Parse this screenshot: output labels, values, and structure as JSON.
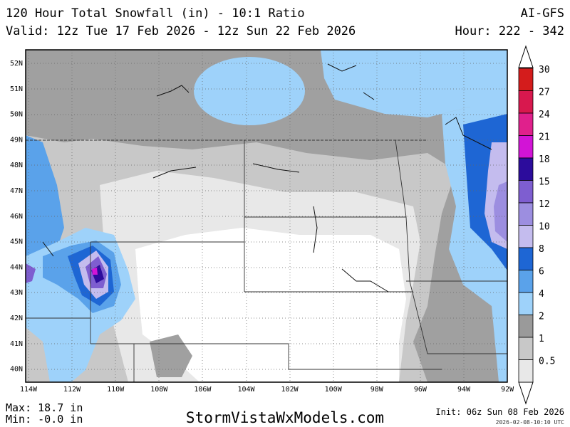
{
  "header": {
    "title": "120 Hour Total Snowfall (in) - 10:1 Ratio",
    "model": "AI-GFS",
    "valid": "Valid: 12z Tue 17 Feb 2026 - 12z Sun 22 Feb 2026",
    "hour": "Hour: 222 - 342"
  },
  "latitudes": [
    "52N",
    "51N",
    "50N",
    "49N",
    "48N",
    "47N",
    "46N",
    "45N",
    "44N",
    "43N",
    "42N",
    "41N",
    "40N"
  ],
  "longitudes": [
    "114W",
    "112W",
    "110W",
    "108W",
    "106W",
    "104W",
    "102W",
    "100W",
    "98W",
    "96W",
    "94W",
    "92W"
  ],
  "legend": {
    "levels": [
      "30",
      "27",
      "24",
      "21",
      "18",
      "15",
      "12",
      "10",
      "8",
      "6",
      "4",
      "2",
      "1",
      "0.5"
    ],
    "colors": [
      "#d41c1c",
      "#d8184e",
      "#e0208c",
      "#d214d6",
      "#2c0c9c",
      "#7e5ed0",
      "#9c8ee0",
      "#c4bcee",
      "#1e66d4",
      "#5aa2ea",
      "#9ed2fa",
      "#9a9a9a",
      "#c8c8c8",
      "#e8e8e8"
    ]
  },
  "footer": {
    "max": "Max: 18.7 in",
    "min": "Min: -0.0 in",
    "site": "StormVistaWxModels.com",
    "init": "Init: 06z Sun 08 Feb 2026",
    "timestamp": "2026-02-08-10:10 UTC"
  }
}
